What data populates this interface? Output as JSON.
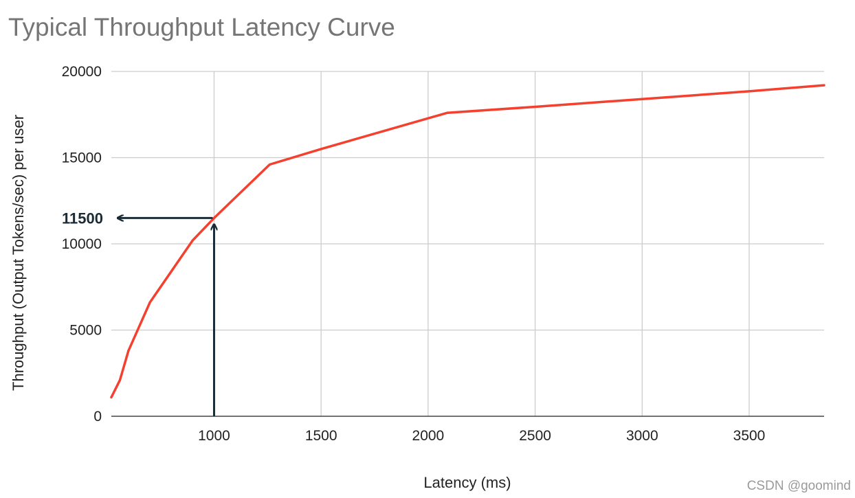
{
  "chart_data": {
    "type": "line",
    "title": "Typical Throughput Latency Curve",
    "xlabel": "Latency (ms)",
    "ylabel": "Throughput (Output Tokens/sec) per user",
    "xlim": [
      520,
      3850
    ],
    "ylim": [
      0,
      20000
    ],
    "xticks": [
      1000,
      1500,
      2000,
      2500,
      3000,
      3500
    ],
    "yticks": [
      0,
      5000,
      10000,
      15000,
      20000
    ],
    "grid": true,
    "legend": "none",
    "series": [
      {
        "color": "#f4402f",
        "points": [
          {
            "x": 520,
            "y": 1100
          },
          {
            "x": 560,
            "y": 2100
          },
          {
            "x": 600,
            "y": 3800
          },
          {
            "x": 700,
            "y": 6600
          },
          {
            "x": 900,
            "y": 10200
          },
          {
            "x": 1000,
            "y": 11500
          },
          {
            "x": 1260,
            "y": 14600
          },
          {
            "x": 1500,
            "y": 15500
          },
          {
            "x": 2090,
            "y": 17600
          },
          {
            "x": 2500,
            "y": 17950
          },
          {
            "x": 3000,
            "y": 18400
          },
          {
            "x": 3500,
            "y": 18850
          },
          {
            "x": 3850,
            "y": 19200
          }
        ]
      }
    ],
    "annotation": {
      "label": "11500",
      "x": 1000,
      "y": 11500,
      "color": "#1b2b36"
    }
  },
  "watermark": "CSDN @goomind"
}
